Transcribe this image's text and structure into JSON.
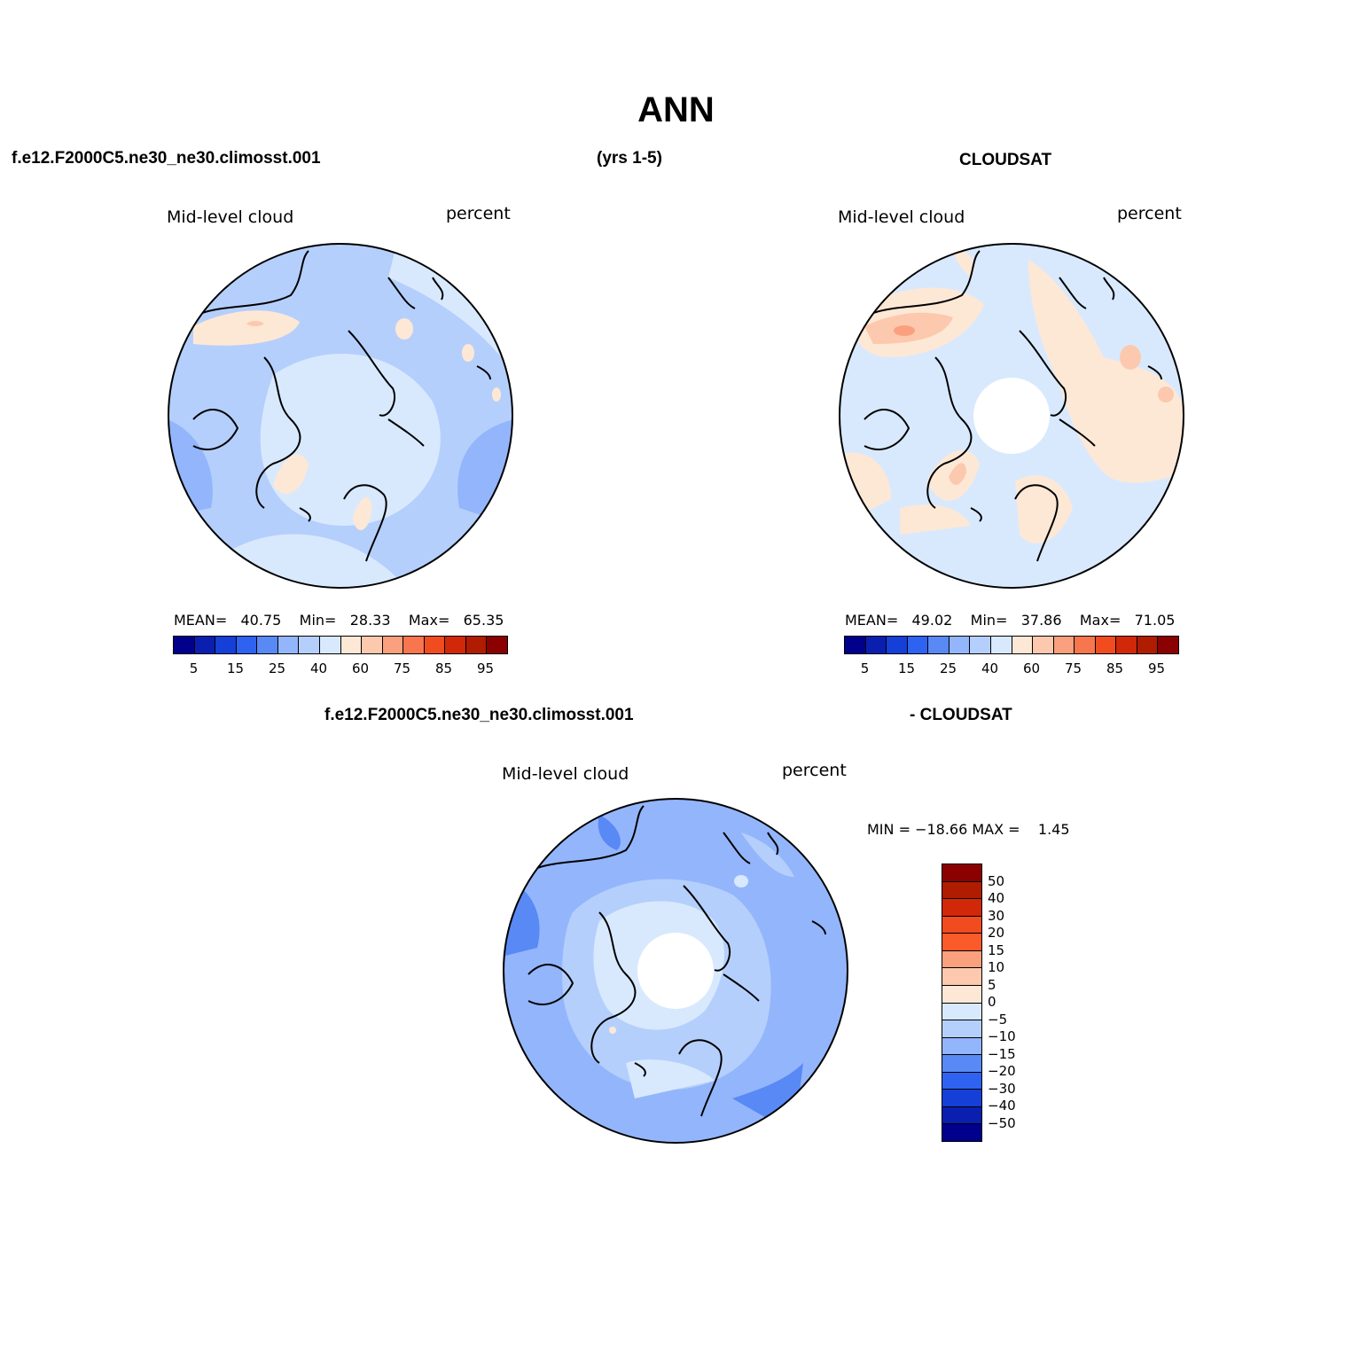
{
  "title": "ANN",
  "header": {
    "case_name": "f.e12.F2000C5.ne30_ne30.climosst.001",
    "years": "(yrs 1-5)",
    "obs_name": "CLOUDSAT"
  },
  "diff_header": {
    "case_name": "f.e12.F2000C5.ne30_ne30.climosst.001",
    "obs_name": "- CLOUDSAT"
  },
  "panels": [
    {
      "variable": "Mid-level cloud",
      "units": "percent",
      "stats": {
        "mean_label": "MEAN=",
        "mean": "40.75",
        "min_label": "Min=",
        "min": "28.33",
        "max_label": "Max=",
        "max": "65.35"
      },
      "polar_hole": false
    },
    {
      "variable": "Mid-level cloud",
      "units": "percent",
      "stats": {
        "mean_label": "MEAN=",
        "mean": "49.02",
        "min_label": "Min=",
        "min": "37.86",
        "max_label": "Max=",
        "max": "71.05"
      },
      "polar_hole": true
    }
  ],
  "diff_panel": {
    "variable": "Mid-level cloud",
    "units": "percent",
    "minmax": "MIN = −18.66 MAX =    1.45",
    "polar_hole": true
  },
  "colorbar_main": {
    "colors": [
      "#00008c",
      "#0a1fb0",
      "#1440d8",
      "#2e62f0",
      "#5889f5",
      "#93b5fb",
      "#b5cffc",
      "#d8e9fe",
      "#fde8d6",
      "#fcc9ae",
      "#fba07f",
      "#f8764e",
      "#f04c1f",
      "#d02808",
      "#b01c00",
      "#8b0000"
    ],
    "labels": [
      "5",
      "15",
      "25",
      "40",
      "60",
      "75",
      "85",
      "95"
    ]
  },
  "colorbar_diff": {
    "colors": [
      "#8b0000",
      "#b01c00",
      "#d02808",
      "#f04c1f",
      "#fb5a2a",
      "#fba07f",
      "#fcc9ae",
      "#fde8d6",
      "#d8e9fe",
      "#b5cffc",
      "#93b5fb",
      "#5889f5",
      "#2e62f0",
      "#1440d8",
      "#0a1fb0",
      "#00008c"
    ],
    "labels": [
      "50",
      "40",
      "30",
      "20",
      "15",
      "10",
      "5",
      "0",
      "−5",
      "−10",
      "−15",
      "−20",
      "−30",
      "−40",
      "−50"
    ]
  },
  "map_colors": {
    "pale_blue": "#d8e9fe",
    "light_blue": "#b5cffc",
    "mid_blue": "#93b5fb",
    "blue": "#5889f5",
    "pale_orange": "#fde8d6",
    "light_orange": "#fcc9ae",
    "orange": "#fba07f"
  }
}
